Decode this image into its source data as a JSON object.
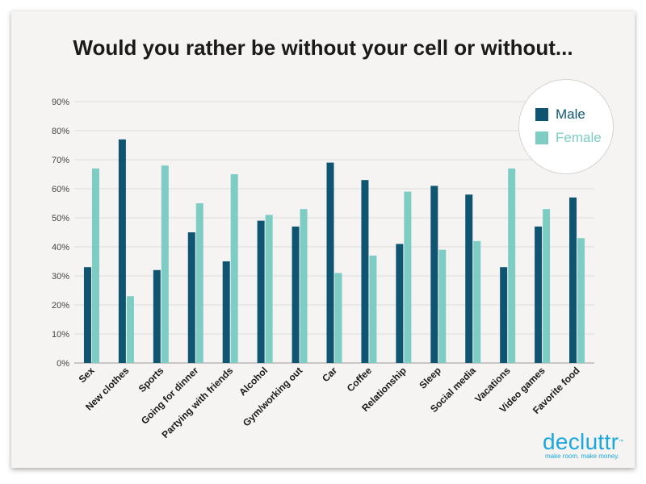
{
  "title": "Would you rather be without your cell or without...",
  "legend": {
    "male_label": "Male",
    "female_label": "Female"
  },
  "logo": {
    "name": "decluttr",
    "trademark": "™",
    "tagline": "make room. make money."
  },
  "colors": {
    "male": "#0f5571",
    "female": "#7ecdc4",
    "title": "#1a1a1a",
    "brand": "#1ca7df"
  },
  "chart_data": {
    "type": "bar",
    "title": "Would you rather be without your cell or without...",
    "categories": [
      "Sex",
      "New clothes",
      "Sports",
      "Going for dinner",
      "Partying with friends",
      "Alcohol",
      "Gym/working out",
      "Car",
      "Coffee",
      "Relationship",
      "Sleep",
      "Social media",
      "Vacations",
      "Video games",
      "Favorite food"
    ],
    "series": [
      {
        "name": "Male",
        "values": [
          33,
          77,
          32,
          45,
          35,
          49,
          47,
          69,
          63,
          41,
          61,
          58,
          33,
          47,
          57
        ]
      },
      {
        "name": "Female",
        "values": [
          67,
          23,
          68,
          55,
          65,
          51,
          53,
          31,
          37,
          59,
          39,
          42,
          67,
          53,
          43
        ]
      }
    ],
    "yticks": [
      "0%",
      "10%",
      "20%",
      "30%",
      "40%",
      "50%",
      "60%",
      "70%",
      "80%",
      "90%"
    ],
    "ylim": [
      0,
      90
    ],
    "grid": true,
    "legend_position": "top-right"
  }
}
